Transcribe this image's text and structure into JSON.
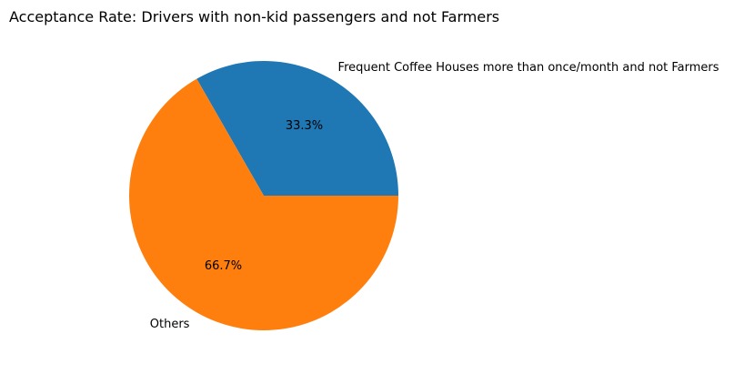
{
  "chart_data": {
    "type": "pie",
    "title": "Acceptance Rate: Drivers with non-kid passengers and not Farmers",
    "slices": [
      {
        "label": "Frequent Coffee Houses more than once/month and not Farmers",
        "value": 33.3,
        "pct_label": "33.3%",
        "color": "#1f77b4"
      },
      {
        "label": "Others",
        "value": 66.7,
        "pct_label": "66.7%",
        "color": "#ff7f0e"
      }
    ],
    "start_angle_deg": 0,
    "direction": "counterclockwise",
    "legend": "none"
  }
}
